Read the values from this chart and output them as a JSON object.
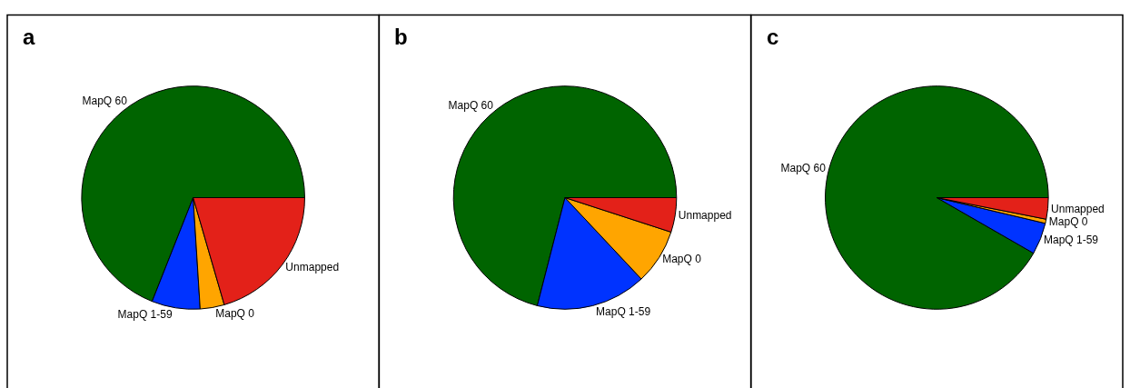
{
  "chart_data": [
    {
      "type": "pie",
      "title": "a",
      "categories": [
        "MapQ 60",
        "MapQ 1-59",
        "MapQ 0",
        "Unmapped"
      ],
      "values": [
        69,
        7,
        3.5,
        20.5
      ],
      "colors": [
        "#006400",
        "#0033ff",
        "#ffa500",
        "#e32119"
      ],
      "legend": false
    },
    {
      "type": "pie",
      "title": "b",
      "categories": [
        "MapQ 60",
        "MapQ 1-59",
        "MapQ 0",
        "Unmapped"
      ],
      "values": [
        71,
        16,
        8,
        5
      ],
      "colors": [
        "#006400",
        "#0033ff",
        "#ffa500",
        "#e32119"
      ],
      "legend": false
    },
    {
      "type": "pie",
      "title": "c",
      "categories": [
        "MapQ 60",
        "MapQ 1-59",
        "MapQ 0",
        "Unmapped"
      ],
      "values": [
        91.7,
        4.6,
        0.6,
        3.1
      ],
      "colors": [
        "#006400",
        "#0033ff",
        "#ffa500",
        "#e32119"
      ],
      "legend": false
    }
  ]
}
